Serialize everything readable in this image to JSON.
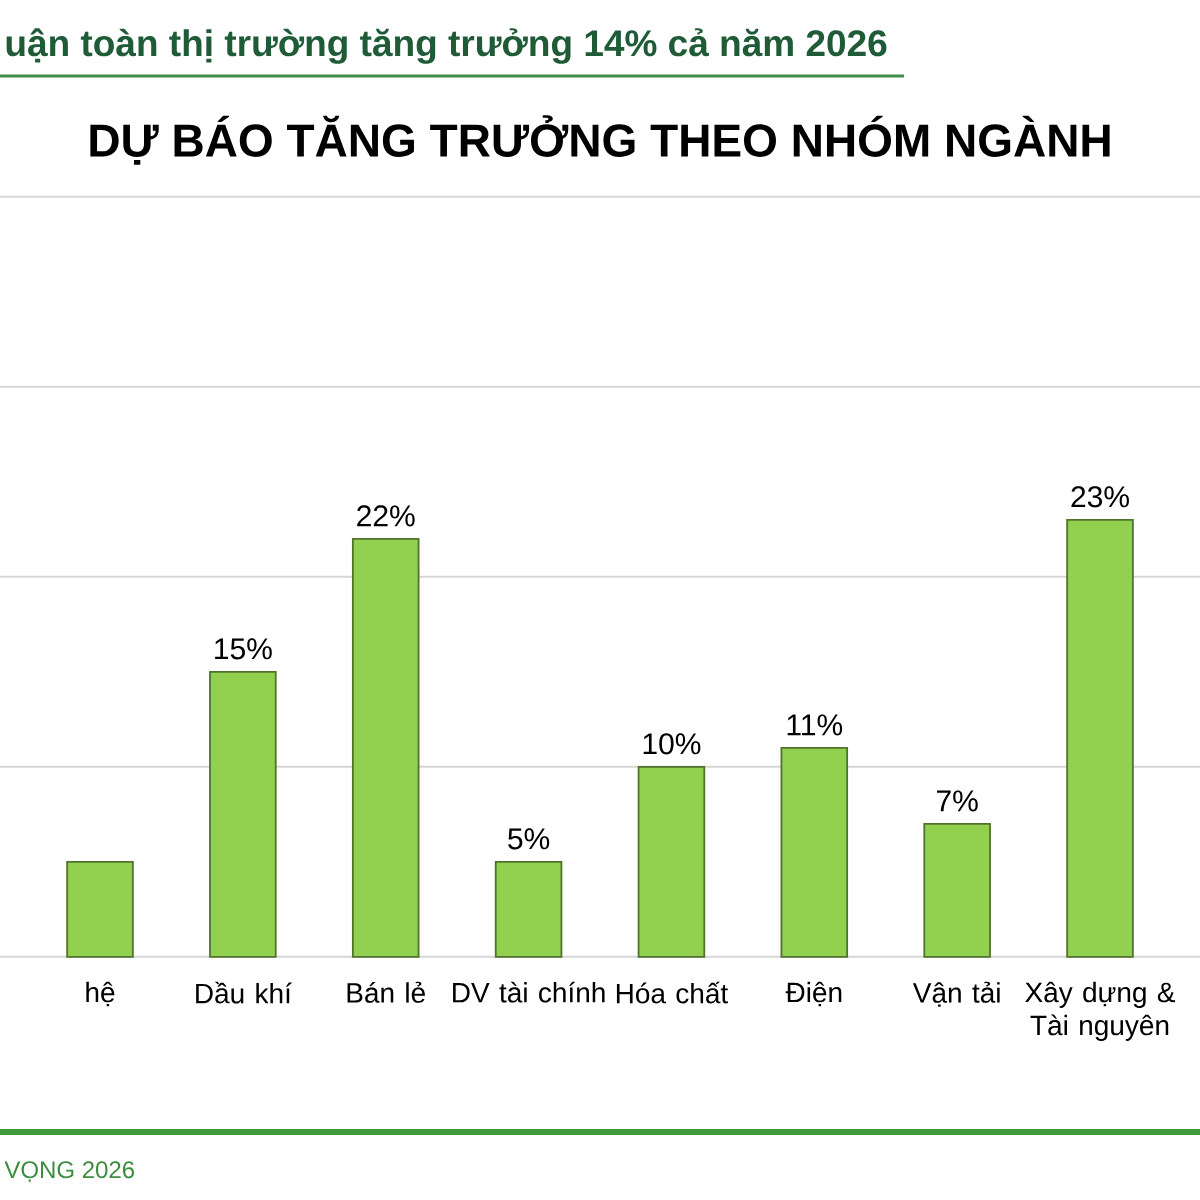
{
  "chart_data": {
    "type": "bar",
    "title": "DỰ BÁO TĂNG TRƯỞNG THEO NHÓM NGÀNH",
    "annotations": [
      "uận toàn thị trường tăng trưởng 14% cả năm 2026",
      "VỌNG 2026"
    ],
    "categories": [
      "hệ",
      "Dầu khí",
      "Bán lẻ",
      "DV tài chính",
      "Hóa chất",
      "Điện",
      "Vận tải",
      "Xây dựng & Tài nguyên"
    ],
    "values": [
      5,
      15,
      22,
      5,
      10,
      11,
      7,
      23
    ],
    "value_labels": [
      null,
      "15%",
      "22%",
      "5%",
      "10%",
      "11%",
      "7%",
      "23%"
    ],
    "color": "#92d050",
    "ylim": [
      0,
      40
    ],
    "yticks": [
      0,
      10,
      20,
      30,
      40
    ],
    "grid": "y",
    "tick_labels": "x"
  }
}
